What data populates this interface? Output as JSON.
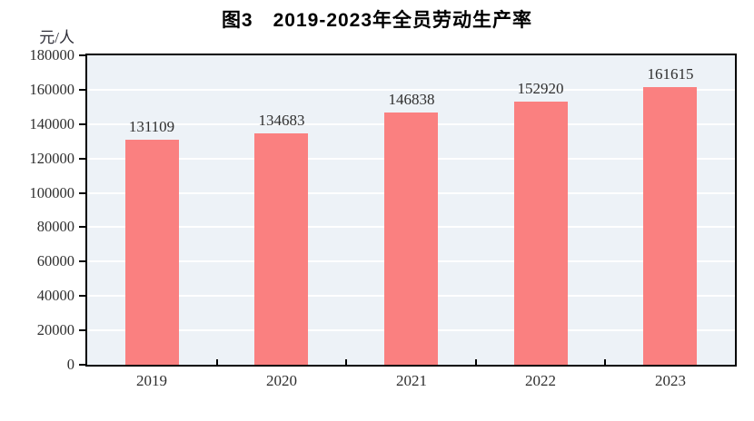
{
  "chart_data": {
    "type": "bar",
    "title": "图3　2019-2023年全员劳动生产率",
    "unit_label": "元/人",
    "categories": [
      "2019",
      "2020",
      "2021",
      "2022",
      "2023"
    ],
    "values": [
      131109,
      134683,
      146838,
      152920,
      161615
    ],
    "data_labels": [
      "131109",
      "134683",
      "146838",
      "152920",
      "161615"
    ],
    "ylim": [
      0,
      180000
    ],
    "yticks": [
      0,
      20000,
      40000,
      60000,
      80000,
      100000,
      120000,
      140000,
      160000,
      180000
    ],
    "ytick_labels": [
      "0",
      "20000",
      "40000",
      "60000",
      "80000",
      "100000",
      "120000",
      "140000",
      "160000",
      "180000"
    ],
    "xlabel": "",
    "ylabel": "元/人",
    "grid": true,
    "legend": "none",
    "colors": {
      "bar": "#FA8080",
      "plot_background": "#EDF2F7",
      "gridline": "#FFFFFF",
      "axis_border": "#000000",
      "tick_text": "#2e2e2e",
      "title_text": "#000000"
    }
  }
}
